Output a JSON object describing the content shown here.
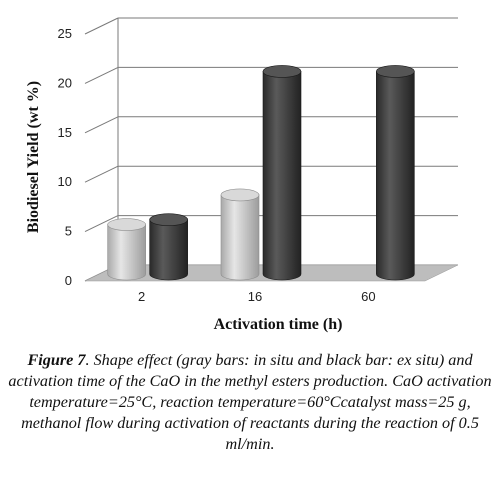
{
  "chart_data": {
    "type": "bar",
    "style": "3d-cylinder",
    "categories": [
      "2",
      "16",
      "60"
    ],
    "series": [
      {
        "color": "#c4c4c4",
        "values": [
          5,
          8,
          null
        ]
      },
      {
        "color": "#3d3d3d",
        "values": [
          5.5,
          20.5,
          20.5
        ]
      }
    ],
    "xlabel": "Activation time (h)",
    "ylabel": "Biodiesel Yield (wt %)",
    "ylim": [
      0,
      25
    ],
    "yticks": [
      0,
      5,
      10,
      15,
      20,
      25
    ],
    "grid": true,
    "legend": "none"
  },
  "caption": {
    "label": "Figure 7",
    "text": ". Shape effect (gray bars: in situ and black bar: ex situ) and activation time of the CaO in the methyl esters production. CaO activation temperature=25°C, reaction temperature=60°Ccatalyst mass=25 g, methanol flow during activation of reactants during the reaction of 0.5 ml/min."
  }
}
